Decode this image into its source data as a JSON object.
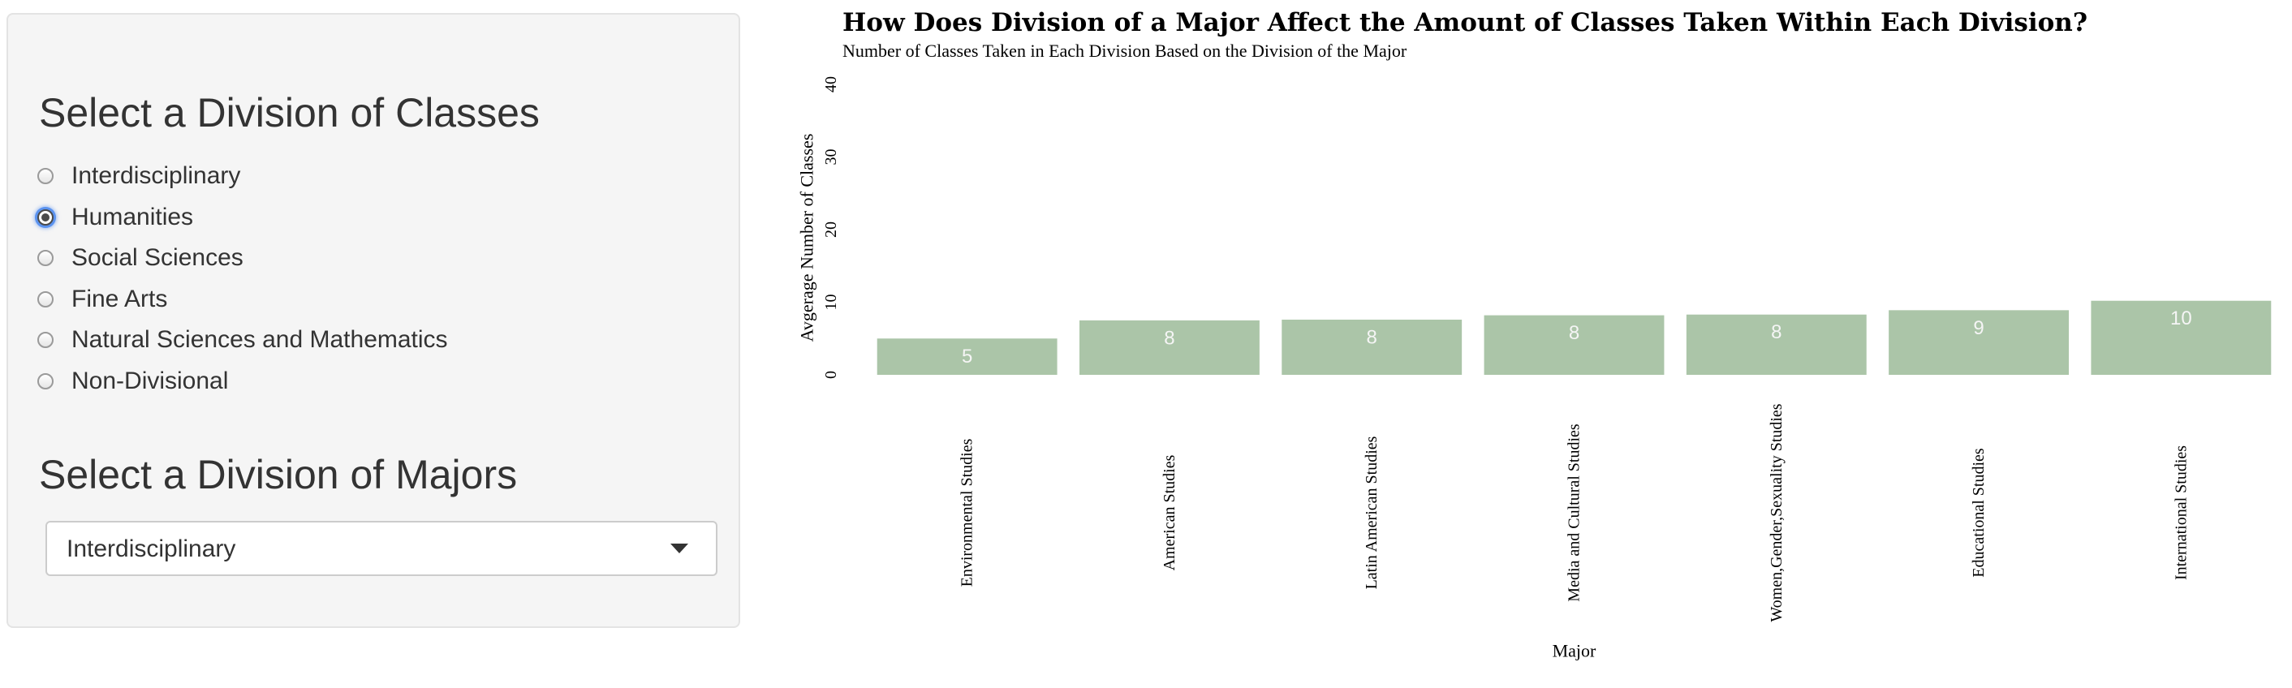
{
  "sidebar": {
    "classes_heading": "Select a Division of Classes",
    "class_options": [
      {
        "label": "Interdisciplinary",
        "checked": false
      },
      {
        "label": "Humanities",
        "checked": true
      },
      {
        "label": "Social Sciences",
        "checked": false
      },
      {
        "label": "Fine Arts",
        "checked": false
      },
      {
        "label": "Natural Sciences and Mathematics",
        "checked": false
      },
      {
        "label": "Non-Divisional",
        "checked": false
      }
    ],
    "majors_heading": "Select a Division of Majors",
    "majors_select": {
      "value": "Interdisciplinary",
      "icon": "chevron-down-icon"
    }
  },
  "chart_data": {
    "type": "bar",
    "title": "How Does Division of a Major Affect the Amount of Classes Taken Within Each Division?",
    "subtitle": "Number of Classes Taken in Each Division Based on the Division of the Major",
    "xlabel": "Major",
    "ylabel": "Avgerage Number of Classes",
    "categories": [
      "Environmental Studies",
      "American Studies",
      "Latin American Studies",
      "Media and Cultural Studies",
      "Women,Gender,Sexuality Studies",
      "Educational Studies",
      "International Studies"
    ],
    "values": [
      5,
      7.5,
      7.6,
      8.2,
      8.3,
      8.9,
      10.2
    ],
    "value_labels": [
      "5",
      "8",
      "8",
      "8",
      "8",
      "9",
      "10"
    ],
    "ylim": [
      0,
      40
    ],
    "yticks": [
      "0",
      "10",
      "20",
      "30",
      "40"
    ],
    "bar_color": "#abc5a8",
    "label_color": "#f5f5f5",
    "grid": false,
    "legend": "none"
  }
}
